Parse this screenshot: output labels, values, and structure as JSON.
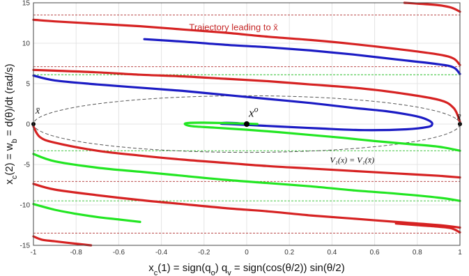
{
  "chart_data": {
    "type": "line",
    "xlim": [
      -1,
      1
    ],
    "ylim": [
      -15,
      15
    ],
    "x_ticks": [
      -1,
      -0.8,
      -0.6,
      -0.4,
      -0.2,
      0,
      0.2,
      0.4,
      0.6,
      0.8,
      1
    ],
    "y_ticks": [
      -15,
      -10,
      -5,
      0,
      5,
      10,
      15
    ],
    "x_tick_labels": [
      "-1",
      "-0.8",
      "-0.6",
      "-0.4",
      "-0.2",
      "0",
      "0.2",
      "0.4",
      "0.6",
      "0.8",
      "1"
    ],
    "y_tick_labels": [
      "-15",
      "-10",
      "-5",
      "0",
      "5",
      "10",
      "15"
    ],
    "xlabel": "x_c(1) = sign(q_o) q_v = sign(cos(θ/2)) sin(θ/2)",
    "ylabel": "x_c(2) = w_b = d(θ)/dt   (rad/s)",
    "grid": true,
    "colors": {
      "red": "#d62222",
      "blue": "#1b1bc4",
      "green": "#22e622",
      "red_dashed": "#b03030",
      "green_dashed": "#2fbf2f",
      "ellipse": "#555555",
      "grid": "#e4e4e4"
    },
    "annotations": {
      "trajectory_label": "Trajectory leading to x̄",
      "xo_label": "x^o",
      "xbar_left_label": "x̄",
      "xbar_right_label": "x̄",
      "level_set_label": "V₁(x) = V₁(x̄)"
    },
    "points": [
      {
        "name": "x_bar_left",
        "x": -1,
        "y": 0
      },
      {
        "name": "x_o",
        "x": 0,
        "y": 0
      },
      {
        "name": "x_bar_right",
        "x": 1,
        "y": 0
      }
    ],
    "ellipse": {
      "center": [
        0,
        0
      ],
      "rx": 1,
      "ry": 3.5
    },
    "red_dashed_levels": [
      13.5,
      7.1,
      -7.1,
      -13.5
    ],
    "green_dashed_levels": [
      6.1,
      -3.3,
      -9.5
    ],
    "series": [
      {
        "color": "red",
        "x": [
          -1,
          -0.9,
          -0.7,
          -0.5,
          -0.3,
          -0.1,
          0.1,
          0.3,
          0.5,
          0.7,
          0.9,
          0.97,
          1
        ],
        "y": [
          12.9,
          12.7,
          12.4,
          12.1,
          11.7,
          11.3,
          10.8,
          10.4,
          9.9,
          9.3,
          8.6,
          8.1,
          7.3
        ]
      },
      {
        "color": "red",
        "x": [
          0.74,
          0.8,
          0.9,
          0.96,
          1
        ],
        "y": [
          15,
          14.9,
          14.7,
          14.4,
          13.9
        ]
      },
      {
        "color": "red",
        "x": [
          -1,
          -0.9,
          -0.7,
          -0.5,
          -0.3,
          -0.1,
          0.1,
          0.3,
          0.5,
          0.7,
          0.9,
          0.97,
          1
        ],
        "y": [
          6.7,
          6.6,
          6.4,
          6.1,
          5.9,
          5.6,
          5.3,
          4.9,
          4.5,
          3.9,
          3.0,
          2.0,
          0.3
        ]
      },
      {
        "color": "red",
        "x": [
          -1,
          -0.97,
          -0.9,
          -0.7,
          -0.5,
          -0.3,
          -0.1,
          0.1,
          0.3,
          0.5,
          0.7,
          0.9,
          1
        ],
        "y": [
          -0.3,
          -1.6,
          -2.3,
          -3.3,
          -3.9,
          -4.4,
          -4.8,
          -5.2,
          -5.5,
          -5.8,
          -6.1,
          -6.4,
          -6.6
        ]
      },
      {
        "color": "red",
        "x": [
          -1,
          -0.9,
          -0.7,
          -0.5,
          -0.3,
          -0.1,
          0.1,
          0.3,
          0.5,
          0.7,
          0.9,
          1
        ],
        "y": [
          -7.4,
          -8.1,
          -8.8,
          -9.4,
          -9.9,
          -10.4,
          -10.8,
          -11.3,
          -11.7,
          -12.1,
          -12.5,
          -12.8
        ]
      },
      {
        "color": "red",
        "x": [
          -1,
          -0.96,
          -0.9,
          -0.8,
          -0.73
        ],
        "y": [
          -13.9,
          -14.3,
          -14.5,
          -14.8,
          -15
        ]
      },
      {
        "color": "red",
        "x": [
          0.7,
          0.8,
          0.9,
          0.96,
          1
        ],
        "y": [
          -12.3,
          -12.5,
          -12.7,
          -12.9,
          -13.4
        ]
      },
      {
        "color": "blue",
        "x": [
          -0.48,
          -0.3,
          -0.1,
          0.1,
          0.3,
          0.5,
          0.7,
          0.9,
          0.97,
          1
        ],
        "y": [
          10.5,
          10.2,
          9.8,
          9.5,
          9.1,
          8.6,
          8.0,
          7.4,
          7.0,
          6.2
        ]
      },
      {
        "color": "blue",
        "x": [
          -1,
          -0.9,
          -0.7,
          -0.5,
          -0.3,
          -0.1,
          0.1,
          0.3,
          0.5,
          0.65,
          0.75,
          0.82,
          0.86,
          0.87,
          0.85,
          0.75,
          0.55,
          0.35,
          0.15,
          0.0,
          -0.08,
          -0.12,
          -0.11,
          -0.05,
          0.0
        ],
        "y": [
          6.0,
          5.4,
          4.9,
          4.5,
          4.1,
          3.6,
          3.1,
          2.6,
          2.0,
          1.6,
          1.2,
          0.8,
          0.35,
          0.0,
          -0.35,
          -0.65,
          -0.75,
          -0.55,
          -0.3,
          -0.1,
          0.0,
          0.05,
          0.15,
          0.12,
          0.0
        ]
      },
      {
        "color": "green",
        "x": [
          0.05,
          0.0,
          -0.1,
          -0.2,
          -0.27,
          -0.29,
          -0.26,
          -0.15,
          0.0,
          0.15,
          0.3,
          0.45,
          0.6,
          0.75,
          0.9,
          1.0
        ],
        "y": [
          0.0,
          0.05,
          0.12,
          0.17,
          0.15,
          0.0,
          -0.25,
          -0.45,
          -0.7,
          -1.0,
          -1.35,
          -1.7,
          -2.1,
          -2.45,
          -2.8,
          -3.3
        ]
      },
      {
        "color": "green",
        "x": [
          -1,
          -0.9,
          -0.7,
          -0.5,
          -0.3,
          -0.1,
          0.1,
          0.3,
          0.5,
          0.7,
          0.9,
          1
        ],
        "y": [
          -3.7,
          -4.6,
          -5.4,
          -5.9,
          -6.4,
          -6.9,
          -7.3,
          -7.7,
          -8.2,
          -8.6,
          -9.1,
          -9.5
        ]
      },
      {
        "color": "green",
        "x": [
          -1,
          -0.9,
          -0.8,
          -0.7,
          -0.6,
          -0.5
        ],
        "y": [
          -9.9,
          -10.6,
          -11.1,
          -11.5,
          -11.8,
          -12.1
        ]
      }
    ]
  }
}
